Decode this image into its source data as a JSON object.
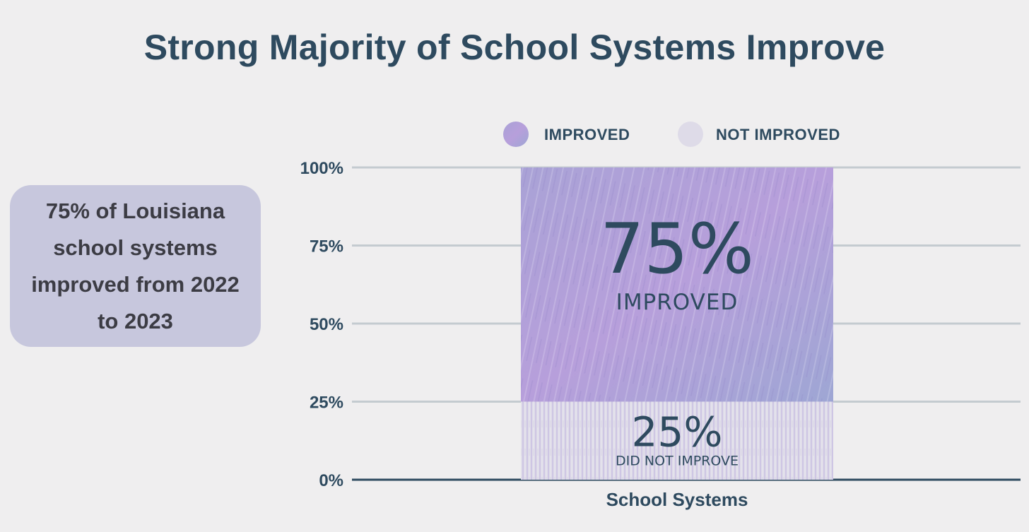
{
  "title": "Strong Majority of School Systems Improve",
  "callout": {
    "text": "75% of Louisiana school systems improved from 2022 to 2023"
  },
  "colors": {
    "title": "#2e4a5f",
    "improved": "#a799d2",
    "not_improved": "#dedbe8",
    "gridline": "#c4cbd0",
    "baseline": "#2e4a5f",
    "callout_bg": "#c7c7dd"
  },
  "chart_data": {
    "type": "bar",
    "stacked": true,
    "title": "Strong Majority of School Systems Improve",
    "categories": [
      "School Systems"
    ],
    "xlabel": "School Systems",
    "ylabel": "",
    "ylim": [
      0,
      100
    ],
    "yticks": [
      "0%",
      "25%",
      "50%",
      "75%",
      "100%"
    ],
    "ytick_values": [
      0,
      25,
      50,
      75,
      100
    ],
    "grid": true,
    "legend_position": "top",
    "series": [
      {
        "name": "NOT IMPROVED",
        "values": [
          25
        ],
        "label": "25%",
        "sublabel": "DID NOT IMPROVE",
        "color": "#dedbe8"
      },
      {
        "name": "IMPROVED",
        "values": [
          75
        ],
        "label": "75%",
        "sublabel": "IMPROVED",
        "color": "#a799d2"
      }
    ]
  }
}
